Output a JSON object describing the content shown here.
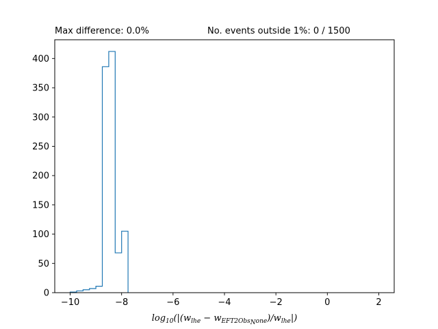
{
  "chart_data": {
    "type": "histogram",
    "title_left": "Max difference: 0.0%",
    "title_right": "No. events outside 1%: 0 / 1500",
    "xlim": [
      -10.6,
      2.6
    ],
    "ylim": [
      0,
      432
    ],
    "x_ticks": [
      -10,
      -8,
      -6,
      -4,
      -2,
      0,
      2
    ],
    "x_tick_labels": [
      "−10",
      "−8",
      "−6",
      "−4",
      "−2",
      "0",
      "2"
    ],
    "y_ticks": [
      0,
      50,
      100,
      150,
      200,
      250,
      300,
      350,
      400
    ],
    "y_tick_labels": [
      "0",
      "50",
      "100",
      "150",
      "200",
      "250",
      "300",
      "350",
      "400"
    ],
    "bin_edges": [
      -10.0,
      -9.75,
      -9.5,
      -9.25,
      -9.0,
      -8.75,
      -8.5,
      -8.25,
      -8.0,
      -7.75
    ],
    "counts": [
      1,
      3,
      5,
      7,
      11,
      386,
      412,
      68,
      105
    ],
    "line_color": "#1f77b4",
    "xlabel_parts": {
      "prefix": "log",
      "prefix_sub": "10",
      "open": "(|(",
      "w1": "w",
      "w1_sub": "lhe",
      "minus": " − ",
      "w2": "w",
      "w2_sub": "EFT2Obs",
      "w2_subsub": "N",
      "w2_sub_tail": "one",
      "mid": ")/",
      "w3": "w",
      "w3_sub": "lhe",
      "close": "|)"
    },
    "grid": false
  }
}
